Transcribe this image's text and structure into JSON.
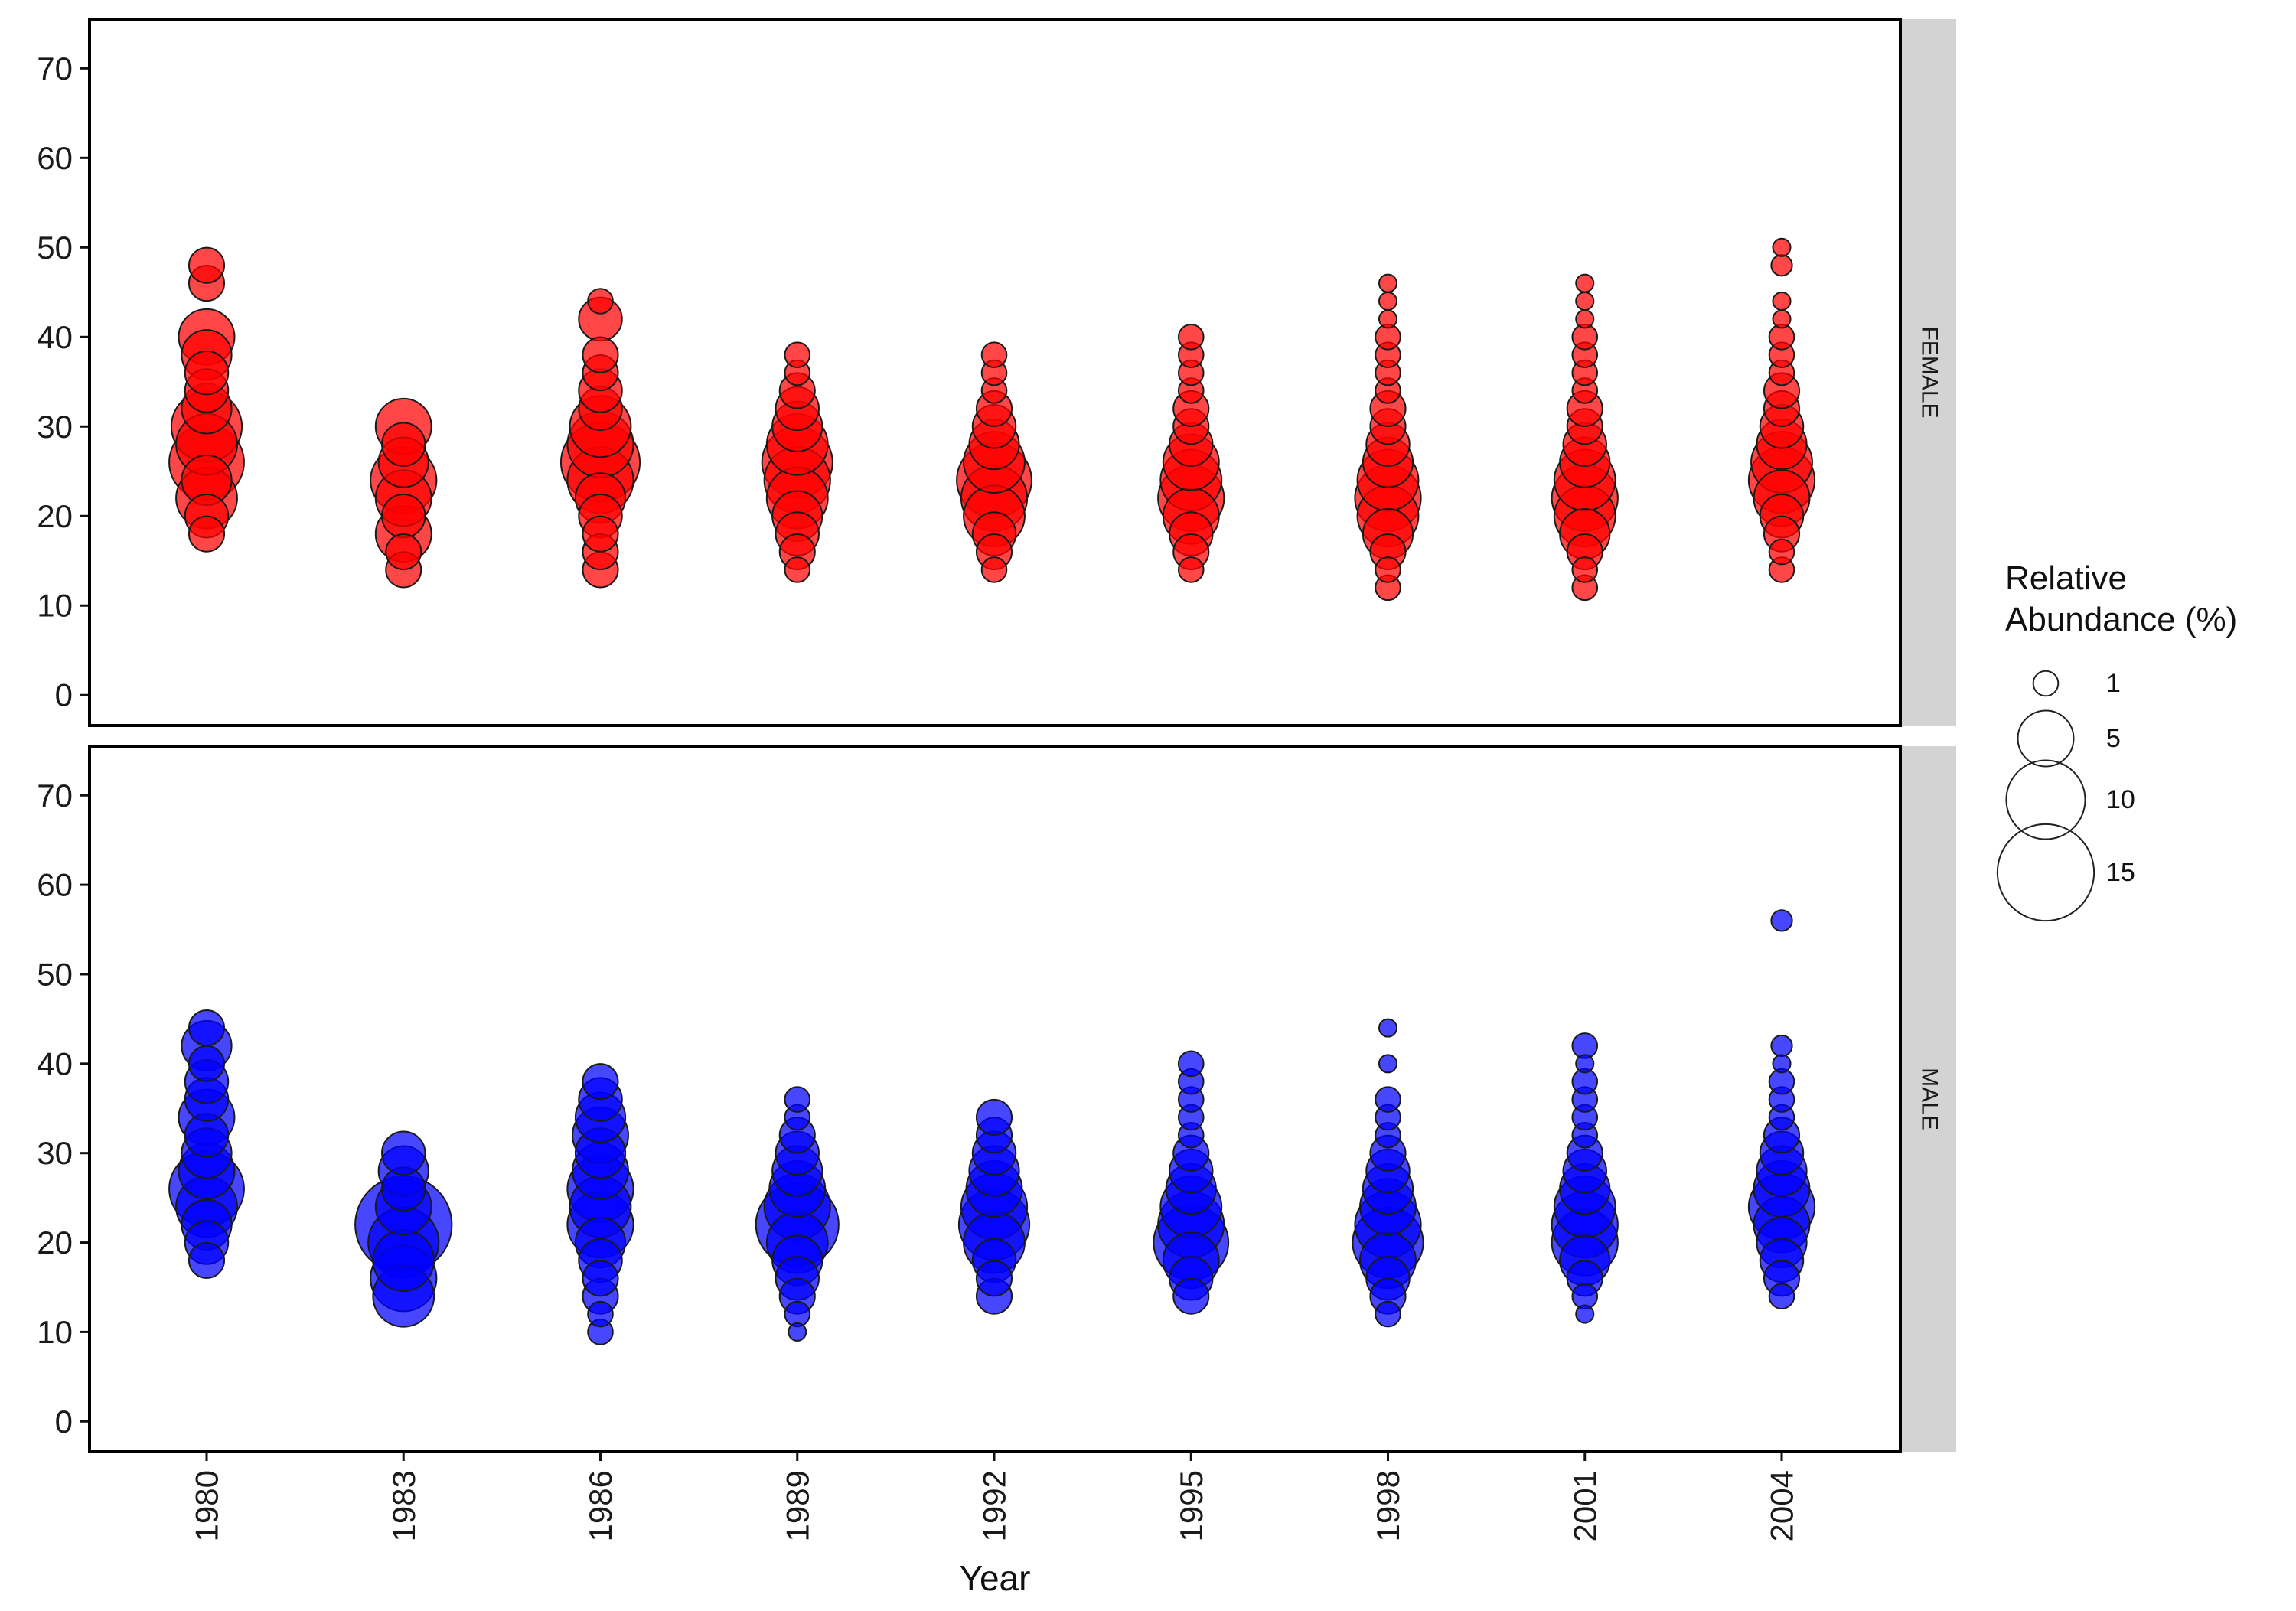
{
  "chart_data": {
    "type": "scatter",
    "subtype": "bubble",
    "xlabel": "Year",
    "ylabel": "",
    "ylim": [
      0,
      70
    ],
    "y_ticks": [
      0,
      10,
      20,
      30,
      40,
      50,
      60,
      70
    ],
    "x_categories": [
      "1980",
      "1983",
      "1986",
      "1989",
      "1992",
      "1995",
      "1998",
      "2001",
      "2004"
    ],
    "grid": false,
    "legend": {
      "title_lines": [
        "Relative",
        "Abundance (%)"
      ],
      "entries": [
        {
          "label": "1",
          "value": 1
        },
        {
          "label": "5",
          "value": 5
        },
        {
          "label": "10",
          "value": 10
        },
        {
          "label": "15",
          "value": 15
        }
      ],
      "placement": "right"
    },
    "panels": [
      {
        "name": "FEMALE",
        "color": "#ff0000",
        "points": {
          "1980": [
            [
              18,
              2
            ],
            [
              20,
              3
            ],
            [
              22,
              6
            ],
            [
              24,
              4
            ],
            [
              26,
              9
            ],
            [
              28,
              6
            ],
            [
              30,
              8
            ],
            [
              32,
              4
            ],
            [
              34,
              3
            ],
            [
              36,
              3
            ],
            [
              38,
              4
            ],
            [
              40,
              5
            ],
            [
              46,
              2
            ],
            [
              48,
              2
            ]
          ],
          "1983": [
            [
              14,
              2
            ],
            [
              16,
              2
            ],
            [
              18,
              5
            ],
            [
              20,
              3
            ],
            [
              22,
              5
            ],
            [
              24,
              7
            ],
            [
              26,
              4
            ],
            [
              28,
              3
            ],
            [
              30,
              5
            ]
          ],
          "1986": [
            [
              14,
              2
            ],
            [
              16,
              2
            ],
            [
              18,
              2
            ],
            [
              20,
              3
            ],
            [
              22,
              4
            ],
            [
              24,
              7
            ],
            [
              26,
              10
            ],
            [
              28,
              7
            ],
            [
              30,
              6
            ],
            [
              32,
              3
            ],
            [
              34,
              3
            ],
            [
              36,
              2
            ],
            [
              38,
              2
            ],
            [
              42,
              3
            ],
            [
              44,
              1
            ]
          ],
          "1989": [
            [
              14,
              1
            ],
            [
              16,
              2
            ],
            [
              18,
              3
            ],
            [
              20,
              4
            ],
            [
              22,
              6
            ],
            [
              24,
              7
            ],
            [
              26,
              8
            ],
            [
              28,
              6
            ],
            [
              30,
              4
            ],
            [
              32,
              3
            ],
            [
              34,
              2
            ],
            [
              36,
              1
            ],
            [
              38,
              1
            ]
          ],
          "1992": [
            [
              14,
              1
            ],
            [
              16,
              2
            ],
            [
              18,
              3
            ],
            [
              20,
              6
            ],
            [
              22,
              7
            ],
            [
              24,
              9
            ],
            [
              26,
              6
            ],
            [
              28,
              4
            ],
            [
              30,
              3
            ],
            [
              32,
              2
            ],
            [
              34,
              1
            ],
            [
              36,
              1
            ],
            [
              38,
              1
            ]
          ],
          "1995": [
            [
              14,
              1
            ],
            [
              16,
              2
            ],
            [
              18,
              3
            ],
            [
              20,
              5
            ],
            [
              22,
              7
            ],
            [
              24,
              6
            ],
            [
              26,
              5
            ],
            [
              28,
              3
            ],
            [
              30,
              2
            ],
            [
              32,
              2
            ],
            [
              34,
              1
            ],
            [
              36,
              1
            ],
            [
              38,
              1
            ],
            [
              40,
              1
            ]
          ],
          "1998": [
            [
              12,
              1
            ],
            [
              14,
              1
            ],
            [
              16,
              2
            ],
            [
              18,
              4
            ],
            [
              20,
              6
            ],
            [
              22,
              7
            ],
            [
              24,
              6
            ],
            [
              26,
              4
            ],
            [
              28,
              3
            ],
            [
              30,
              2
            ],
            [
              32,
              2
            ],
            [
              34,
              1
            ],
            [
              36,
              1
            ],
            [
              38,
              1
            ],
            [
              40,
              1
            ],
            [
              42,
              0.5
            ],
            [
              44,
              0.5
            ],
            [
              46,
              0.5
            ]
          ],
          "2001": [
            [
              12,
              1
            ],
            [
              14,
              1
            ],
            [
              16,
              2
            ],
            [
              18,
              4
            ],
            [
              20,
              6
            ],
            [
              22,
              7
            ],
            [
              24,
              6
            ],
            [
              26,
              4
            ],
            [
              28,
              3
            ],
            [
              30,
              2
            ],
            [
              32,
              2
            ],
            [
              34,
              1
            ],
            [
              36,
              1
            ],
            [
              38,
              1
            ],
            [
              40,
              1
            ],
            [
              42,
              0.5
            ],
            [
              44,
              0.5
            ],
            [
              46,
              0.5
            ]
          ],
          "2004": [
            [
              14,
              1
            ],
            [
              16,
              1
            ],
            [
              18,
              2
            ],
            [
              20,
              3
            ],
            [
              22,
              5
            ],
            [
              24,
              7
            ],
            [
              26,
              6
            ],
            [
              28,
              4
            ],
            [
              30,
              3
            ],
            [
              32,
              2
            ],
            [
              34,
              2
            ],
            [
              36,
              1
            ],
            [
              38,
              1
            ],
            [
              40,
              1
            ],
            [
              42,
              0.5
            ],
            [
              44,
              0.5
            ],
            [
              48,
              0.7
            ],
            [
              50,
              0.5
            ]
          ]
        }
      },
      {
        "name": "MALE",
        "color": "#0000ff",
        "points": {
          "1980": [
            [
              18,
              2
            ],
            [
              20,
              3
            ],
            [
              22,
              4
            ],
            [
              24,
              6
            ],
            [
              26,
              9
            ],
            [
              28,
              5
            ],
            [
              30,
              4
            ],
            [
              32,
              3
            ],
            [
              34,
              5
            ],
            [
              36,
              3
            ],
            [
              38,
              3
            ],
            [
              40,
              2
            ],
            [
              42,
              4
            ],
            [
              44,
              2
            ]
          ],
          "1983": [
            [
              14,
              6
            ],
            [
              16,
              7
            ],
            [
              18,
              6
            ],
            [
              20,
              8
            ],
            [
              22,
              15
            ],
            [
              24,
              5
            ],
            [
              26,
              3
            ],
            [
              28,
              4
            ],
            [
              30,
              3
            ]
          ],
          "1986": [
            [
              10,
              1
            ],
            [
              12,
              1
            ],
            [
              14,
              2
            ],
            [
              16,
              2
            ],
            [
              18,
              3
            ],
            [
              20,
              4
            ],
            [
              22,
              7
            ],
            [
              24,
              6
            ],
            [
              26,
              7
            ],
            [
              28,
              5
            ],
            [
              30,
              4
            ],
            [
              32,
              5
            ],
            [
              34,
              4
            ],
            [
              36,
              3
            ],
            [
              38,
              2
            ]
          ],
          "1989": [
            [
              10,
              0.5
            ],
            [
              12,
              1
            ],
            [
              14,
              2
            ],
            [
              16,
              3
            ],
            [
              18,
              4
            ],
            [
              20,
              6
            ],
            [
              22,
              11
            ],
            [
              24,
              7
            ],
            [
              26,
              5
            ],
            [
              28,
              4
            ],
            [
              30,
              3
            ],
            [
              32,
              2
            ],
            [
              34,
              1
            ],
            [
              36,
              1
            ]
          ],
          "1992": [
            [
              14,
              2
            ],
            [
              16,
              2
            ],
            [
              18,
              3
            ],
            [
              20,
              6
            ],
            [
              22,
              8
            ],
            [
              24,
              7
            ],
            [
              26,
              5
            ],
            [
              28,
              4
            ],
            [
              30,
              3
            ],
            [
              32,
              2
            ],
            [
              34,
              2
            ]
          ],
          "1995": [
            [
              14,
              2
            ],
            [
              16,
              3
            ],
            [
              18,
              5
            ],
            [
              20,
              9
            ],
            [
              22,
              7
            ],
            [
              24,
              6
            ],
            [
              26,
              4
            ],
            [
              28,
              3
            ],
            [
              30,
              2
            ],
            [
              32,
              1
            ],
            [
              34,
              1
            ],
            [
              36,
              1
            ],
            [
              38,
              1
            ],
            [
              40,
              1
            ]
          ],
          "1998": [
            [
              12,
              1
            ],
            [
              14,
              2
            ],
            [
              16,
              3
            ],
            [
              18,
              5
            ],
            [
              20,
              8
            ],
            [
              22,
              7
            ],
            [
              24,
              5
            ],
            [
              26,
              4
            ],
            [
              28,
              3
            ],
            [
              30,
              2
            ],
            [
              32,
              1
            ],
            [
              34,
              1
            ],
            [
              36,
              1
            ],
            [
              40,
              0.5
            ],
            [
              44,
              0.5
            ]
          ],
          "2001": [
            [
              12,
              0.5
            ],
            [
              14,
              1
            ],
            [
              16,
              2
            ],
            [
              18,
              4
            ],
            [
              20,
              7
            ],
            [
              22,
              7
            ],
            [
              24,
              6
            ],
            [
              26,
              4
            ],
            [
              28,
              3
            ],
            [
              30,
              2
            ],
            [
              32,
              1
            ],
            [
              34,
              1
            ],
            [
              36,
              1
            ],
            [
              38,
              1
            ],
            [
              40,
              0.5
            ],
            [
              42,
              1
            ]
          ],
          "2004": [
            [
              14,
              1
            ],
            [
              16,
              2
            ],
            [
              18,
              3
            ],
            [
              20,
              4
            ],
            [
              22,
              5
            ],
            [
              24,
              7
            ],
            [
              26,
              5
            ],
            [
              28,
              4
            ],
            [
              30,
              3
            ],
            [
              32,
              2
            ],
            [
              34,
              1
            ],
            [
              36,
              1
            ],
            [
              38,
              1
            ],
            [
              40,
              0.5
            ],
            [
              42,
              0.7
            ],
            [
              56,
              0.7
            ]
          ]
        }
      }
    ]
  }
}
